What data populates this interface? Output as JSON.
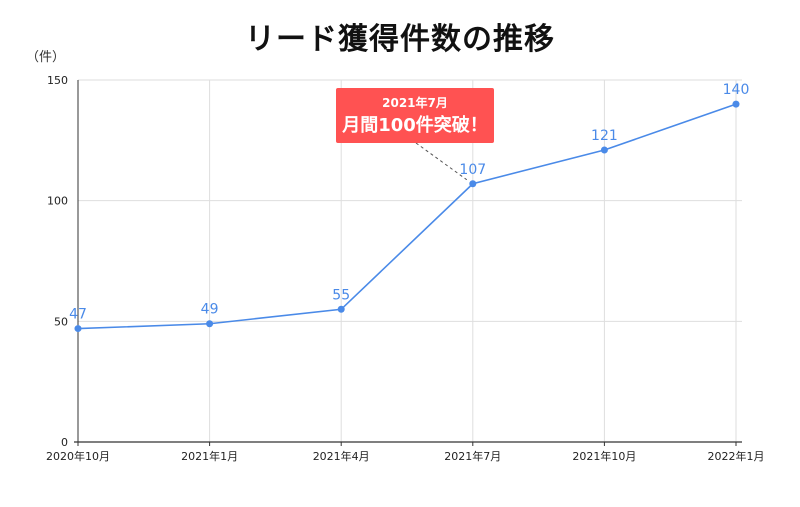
{
  "chart_data": {
    "type": "line",
    "title": "リード獲得件数の推移",
    "ylabel": "（件）",
    "categories": [
      "2020年10月",
      "2021年1月",
      "2021年4月",
      "2021年7月",
      "2021年10月",
      "2022年1月"
    ],
    "values": [
      47,
      49,
      55,
      107,
      121,
      140
    ],
    "yticks": [
      "0",
      "50",
      "100",
      "150"
    ],
    "ylim": [
      0,
      150
    ],
    "grid": true,
    "line_color": "#4a8ae8",
    "annotation": {
      "line1": "2021年7月",
      "line2": "月間100件突破！",
      "color": "#ff5252",
      "target_index": 3
    }
  }
}
